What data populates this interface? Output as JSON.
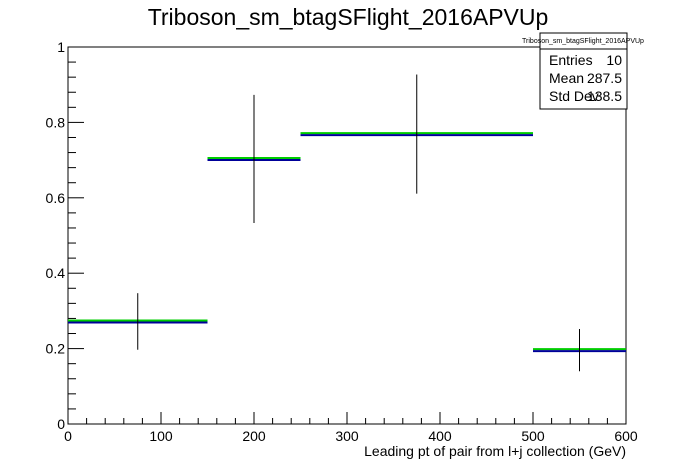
{
  "chart_data": {
    "type": "histogram",
    "title": "Triboson_sm_btagSFlight_2016APVUp",
    "xlabel": "Leading pt of pair from l+j collection (GeV)",
    "ylabel": "",
    "xlim": [
      0,
      600
    ],
    "ylim": [
      0,
      1.0
    ],
    "x_ticks": [
      "0",
      "100",
      "200",
      "300",
      "400",
      "500",
      "600"
    ],
    "y_ticks": [
      "0",
      "0.2",
      "0.4",
      "0.6",
      "0.8",
      "1"
    ],
    "bins": [
      {
        "x_low": 0,
        "x_high": 150,
        "x_center": 75,
        "value": 0.272,
        "err_low": 0.197,
        "err_high": 0.347
      },
      {
        "x_low": 150,
        "x_high": 250,
        "x_center": 200,
        "value": 0.703,
        "err_low": 0.533,
        "err_high": 0.873
      },
      {
        "x_low": 250,
        "x_high": 500,
        "x_center": 375,
        "value": 0.769,
        "err_low": 0.611,
        "err_high": 0.927
      },
      {
        "x_low": 500,
        "x_high": 600,
        "x_center": 550,
        "value": 0.196,
        "err_low": 0.14,
        "err_high": 0.252
      }
    ],
    "line_colors": {
      "fill_line": "#00cc00",
      "main_line": "#000099",
      "error_bar": "#000000"
    },
    "grid": false,
    "stats_box": {
      "title": "Triboson_sm_btagSFlight_2016APVUp",
      "rows": [
        {
          "label": "Entries",
          "value": "10"
        },
        {
          "label": "Mean",
          "value": "287.5"
        },
        {
          "label": "Std Dev",
          "value": "138.5"
        }
      ],
      "placement": "top-right"
    }
  }
}
